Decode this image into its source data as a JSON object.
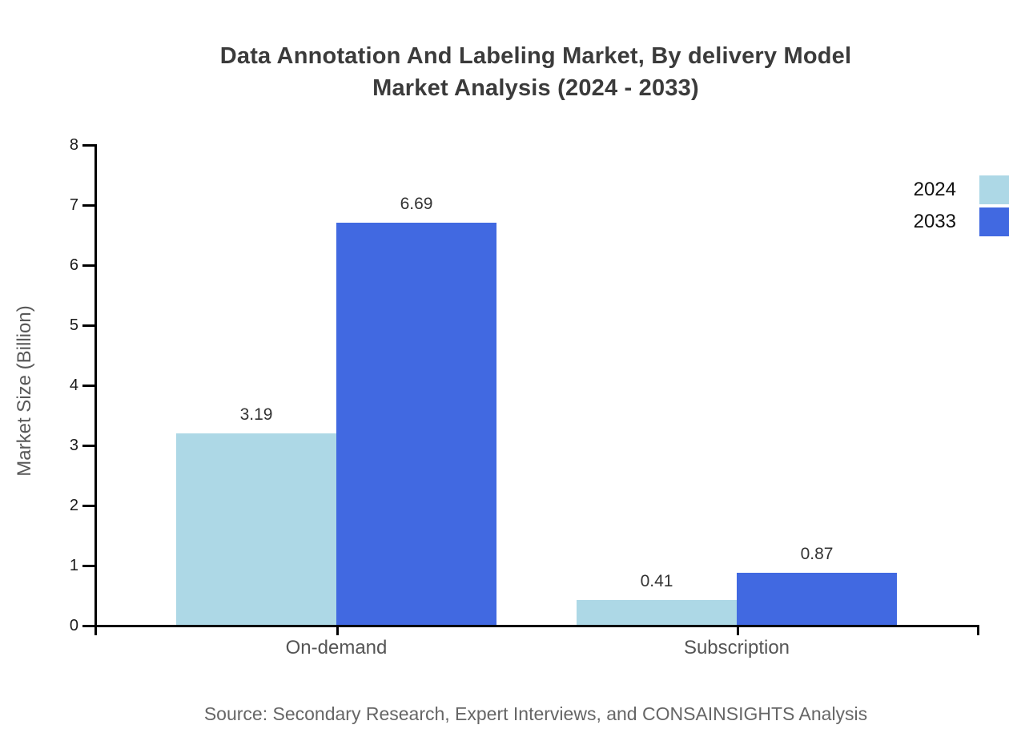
{
  "title": {
    "line1": "Data Annotation And Labeling Market, By delivery Model",
    "line2": "Market Analysis (2024 - 2033)"
  },
  "chart_data": {
    "type": "bar",
    "title": "Data Annotation And Labeling Market, By delivery Model Market Analysis (2024 - 2033)",
    "categories": [
      "On-demand",
      "Subscription"
    ],
    "series": [
      {
        "name": "2024",
        "color": "#ADD8E6",
        "values": [
          3.19,
          0.41
        ]
      },
      {
        "name": "2033",
        "color": "#4169E1",
        "values": [
          6.69,
          0.87
        ]
      }
    ],
    "value_labels": [
      [
        "3.19",
        "0.41"
      ],
      [
        "6.69",
        "0.87"
      ]
    ],
    "xlabel": "",
    "ylabel": "Market Size (Billion)",
    "ylim": [
      0,
      8
    ],
    "yticks": [
      0,
      1,
      2,
      3,
      4,
      5,
      6,
      7,
      8
    ],
    "grid": false,
    "legend_position": "top-right"
  },
  "source": "Source: Secondary Research, Expert Interviews, and CONSAINSIGHTS Analysis"
}
